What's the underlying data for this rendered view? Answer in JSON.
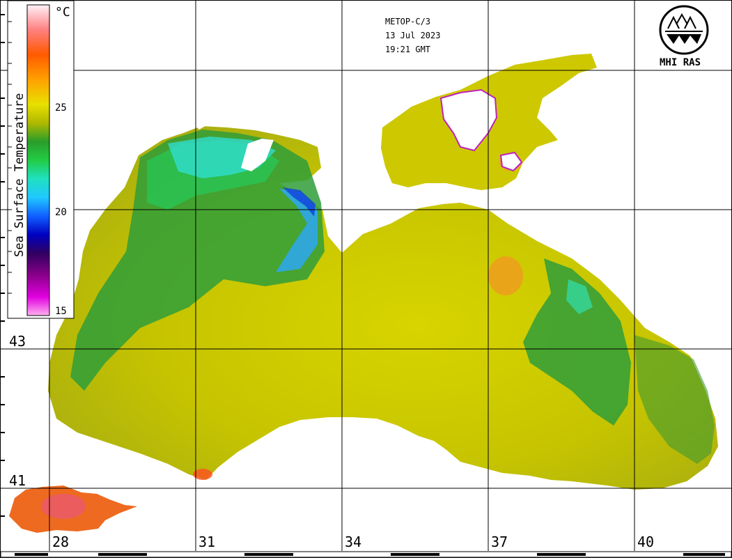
{
  "header": {
    "satellite": "METOP-C/3",
    "date": "13 Jul 2023",
    "time": "19:21 GMT"
  },
  "logo": {
    "text": "MHI RAS"
  },
  "legend": {
    "title": "Sea Surface Temperature",
    "unit": "°C",
    "ticks": [
      "25",
      "20",
      "15"
    ],
    "colors": [
      "#fff0f8",
      "#ff8080",
      "#ff5a00",
      "#ffa000",
      "#e8e000",
      "#b0b800",
      "#2a9d2a",
      "#22cc44",
      "#20e0c0",
      "#20c8ff",
      "#1060ff",
      "#0000c0",
      "#300060",
      "#8a008a",
      "#e000e0",
      "#ffb0f0"
    ]
  },
  "axes": {
    "lat_labels": [
      "43",
      "41"
    ],
    "lon_labels": [
      "28",
      "31",
      "34",
      "37",
      "40"
    ]
  }
}
